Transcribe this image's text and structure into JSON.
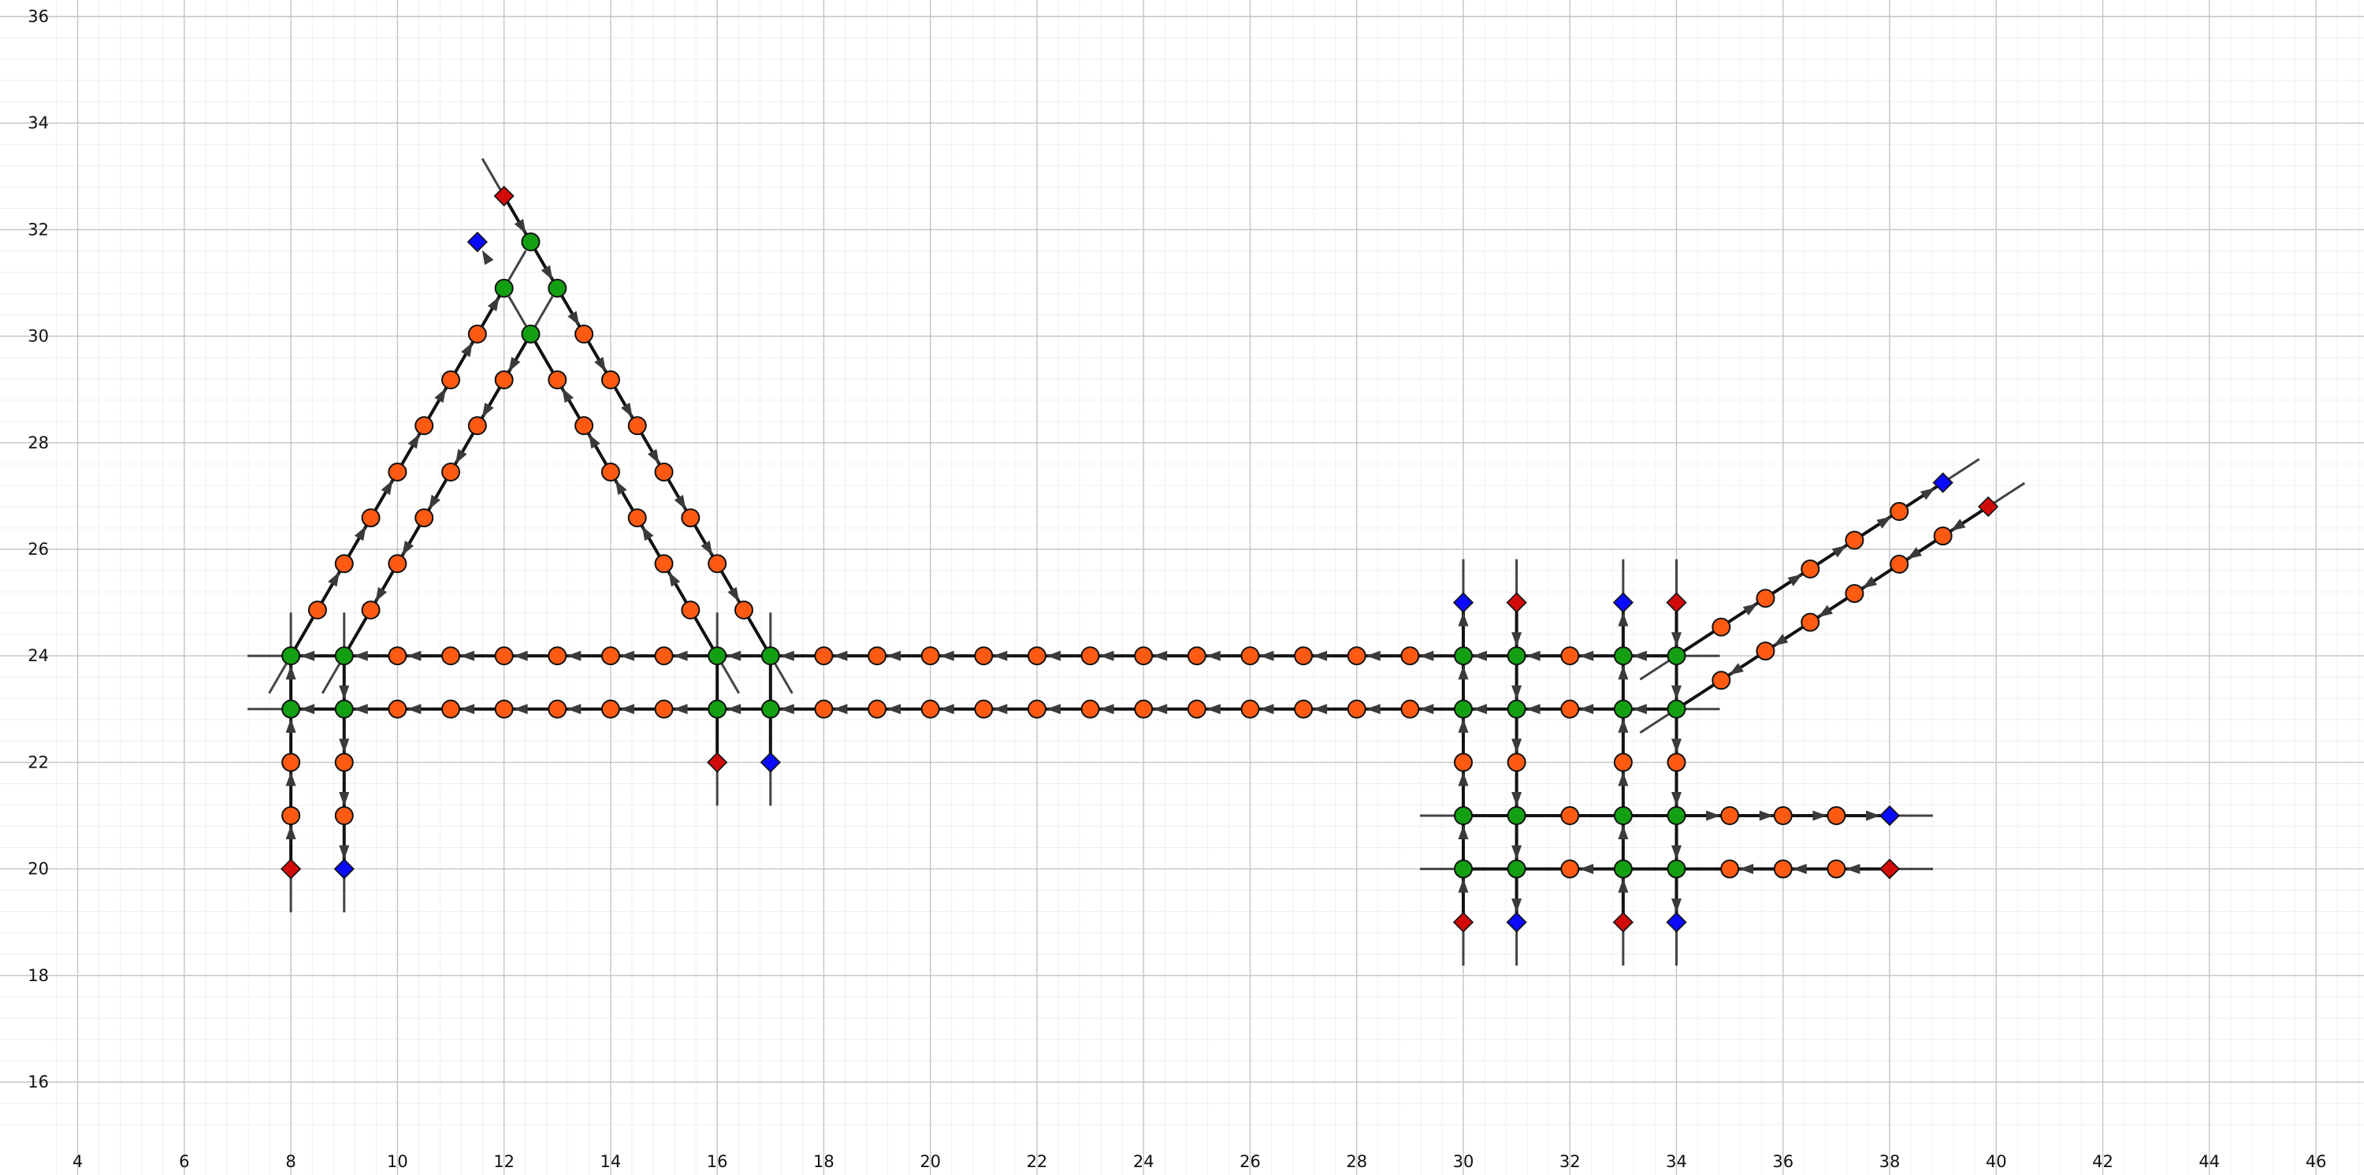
{
  "chart_data": {
    "type": "network",
    "title": "",
    "xlabel": "",
    "ylabel": "",
    "xlim": [
      3.5,
      47
    ],
    "ylim": [
      15,
      36.2
    ],
    "grid": true,
    "x_ticks": [
      "4",
      "6",
      "8",
      "10",
      "12",
      "14",
      "16",
      "18",
      "20",
      "22",
      "24",
      "26",
      "28",
      "30",
      "32",
      "34",
      "36",
      "38",
      "40",
      "42",
      "44",
      "46"
    ],
    "y_ticks": [
      "16",
      "18",
      "20",
      "22",
      "24",
      "26",
      "28",
      "30",
      "32",
      "34",
      "36"
    ],
    "colors": {
      "lane_node": "#ff5a12",
      "junction_node": "#12a012",
      "origin_node": "#d10a0a",
      "destination_node": "#0a0aff",
      "road": "#111111",
      "arrow": "#3a3a3a"
    },
    "roads": [
      {
        "name": "west-left-vertical",
        "points": [
          [
            8,
            20
          ],
          [
            8,
            24
          ]
        ],
        "direction": "forward",
        "nodes": [
          [
            8,
            20,
            "origin"
          ],
          [
            8,
            21,
            "lane"
          ],
          [
            8,
            22,
            "lane"
          ],
          [
            8,
            23,
            "junction"
          ],
          [
            8,
            24,
            "junction"
          ]
        ]
      },
      {
        "name": "west-right-vertical",
        "points": [
          [
            9,
            24
          ],
          [
            9,
            20
          ]
        ],
        "direction": "forward",
        "nodes": [
          [
            9,
            24,
            "junction"
          ],
          [
            9,
            23,
            "junction"
          ],
          [
            9,
            22,
            "lane"
          ],
          [
            9,
            21,
            "lane"
          ],
          [
            9,
            20,
            "destination"
          ]
        ]
      },
      {
        "name": "upper-horizontal",
        "points": [
          [
            8,
            24
          ],
          [
            34,
            24
          ]
        ],
        "direction": "backward",
        "nodes": [
          [
            8,
            24,
            "junction"
          ],
          [
            9,
            24,
            "junction"
          ],
          [
            10,
            24,
            "lane"
          ],
          [
            11,
            24,
            "lane"
          ],
          [
            12,
            24,
            "lane"
          ],
          [
            13,
            24,
            "lane"
          ],
          [
            14,
            24,
            "lane"
          ],
          [
            15,
            24,
            "lane"
          ],
          [
            16,
            24,
            "junction"
          ],
          [
            17,
            24,
            "junction"
          ],
          [
            18,
            24,
            "lane"
          ],
          [
            19,
            24,
            "lane"
          ],
          [
            20,
            24,
            "lane"
          ],
          [
            21,
            24,
            "lane"
          ],
          [
            22,
            24,
            "lane"
          ],
          [
            23,
            24,
            "lane"
          ],
          [
            24,
            24,
            "lane"
          ],
          [
            25,
            24,
            "lane"
          ],
          [
            26,
            24,
            "lane"
          ],
          [
            27,
            24,
            "lane"
          ],
          [
            28,
            24,
            "lane"
          ],
          [
            29,
            24,
            "lane"
          ],
          [
            30,
            24,
            "junction"
          ],
          [
            31,
            24,
            "junction"
          ],
          [
            32,
            24,
            "lane"
          ],
          [
            33,
            24,
            "junction"
          ],
          [
            34,
            24,
            "junction"
          ]
        ]
      },
      {
        "name": "lower-horizontal",
        "points": [
          [
            8,
            23
          ],
          [
            34,
            23
          ]
        ],
        "direction": "backward",
        "nodes": [
          [
            8,
            23,
            "junction"
          ],
          [
            9,
            23,
            "junction"
          ],
          [
            10,
            23,
            "lane"
          ],
          [
            11,
            23,
            "lane"
          ],
          [
            12,
            23,
            "lane"
          ],
          [
            13,
            23,
            "lane"
          ],
          [
            14,
            23,
            "lane"
          ],
          [
            15,
            23,
            "lane"
          ],
          [
            16,
            23,
            "junction"
          ],
          [
            17,
            23,
            "junction"
          ],
          [
            18,
            23,
            "lane"
          ],
          [
            19,
            23,
            "lane"
          ],
          [
            20,
            23,
            "lane"
          ],
          [
            21,
            23,
            "lane"
          ],
          [
            22,
            23,
            "lane"
          ],
          [
            23,
            23,
            "lane"
          ],
          [
            24,
            23,
            "lane"
          ],
          [
            25,
            23,
            "lane"
          ],
          [
            26,
            23,
            "lane"
          ],
          [
            27,
            23,
            "lane"
          ],
          [
            28,
            23,
            "lane"
          ],
          [
            29,
            23,
            "lane"
          ],
          [
            30,
            23,
            "junction"
          ],
          [
            31,
            23,
            "junction"
          ],
          [
            32,
            23,
            "lane"
          ],
          [
            33,
            23,
            "junction"
          ],
          [
            34,
            23,
            "junction"
          ]
        ]
      },
      {
        "name": "a-frame-left-outer",
        "points": [
          [
            8,
            24
          ],
          [
            12,
            30.9
          ]
        ],
        "direction": "forward",
        "nodes": [
          [
            8.5,
            24.86,
            "lane"
          ],
          [
            9,
            25.73,
            "lane"
          ],
          [
            9.5,
            26.59,
            "lane"
          ],
          [
            10,
            27.45,
            "lane"
          ],
          [
            10.5,
            28.32,
            "lane"
          ],
          [
            11,
            29.18,
            "lane"
          ],
          [
            11.5,
            30.04,
            "lane"
          ],
          [
            12,
            30.9,
            "junction"
          ],
          [
            11.5,
            31.77,
            "destination"
          ]
        ]
      },
      {
        "name": "a-frame-left-inner",
        "points": [
          [
            12.5,
            30.04
          ],
          [
            9,
            24
          ]
        ],
        "direction": "forward",
        "nodes": [
          [
            12.5,
            30.04,
            "junction"
          ],
          [
            12,
            29.18,
            "lane"
          ],
          [
            11.5,
            28.32,
            "lane"
          ],
          [
            11,
            27.45,
            "lane"
          ],
          [
            10.5,
            26.59,
            "lane"
          ],
          [
            10,
            25.73,
            "lane"
          ],
          [
            9.5,
            24.86,
            "lane"
          ]
        ]
      },
      {
        "name": "a-frame-right-outer",
        "points": [
          [
            12,
            32.63
          ],
          [
            17,
            24
          ]
        ],
        "direction": "forward",
        "nodes": [
          [
            12,
            32.63,
            "origin"
          ],
          [
            12.5,
            31.77,
            "junction"
          ],
          [
            13,
            30.9,
            "junction"
          ],
          [
            13.5,
            30.04,
            "lane"
          ],
          [
            14,
            29.18,
            "lane"
          ],
          [
            14.5,
            28.32,
            "lane"
          ],
          [
            15,
            27.45,
            "lane"
          ],
          [
            15.5,
            26.59,
            "lane"
          ],
          [
            16,
            25.73,
            "lane"
          ],
          [
            16.5,
            24.86,
            "lane"
          ]
        ]
      },
      {
        "name": "a-frame-right-inner",
        "points": [
          [
            16,
            24
          ],
          [
            12.5,
            30.04
          ]
        ],
        "direction": "forward",
        "nodes": [
          [
            15.5,
            24.86,
            "lane"
          ],
          [
            15,
            25.73,
            "lane"
          ],
          [
            14.5,
            26.59,
            "lane"
          ],
          [
            14,
            27.45,
            "lane"
          ],
          [
            13.5,
            28.32,
            "lane"
          ],
          [
            13,
            29.18,
            "lane"
          ]
        ]
      },
      {
        "name": "middle-stub-origin",
        "points": [
          [
            16,
            22
          ],
          [
            16,
            24
          ]
        ],
        "direction": "forward",
        "nodes": [
          [
            16,
            22,
            "origin"
          ]
        ]
      },
      {
        "name": "middle-stub-destination",
        "points": [
          [
            17,
            24
          ],
          [
            17,
            22
          ]
        ],
        "direction": "forward",
        "nodes": [
          [
            17,
            22,
            "destination"
          ]
        ]
      },
      {
        "name": "grid-col-30",
        "points": [
          [
            30,
            19
          ],
          [
            30,
            25
          ]
        ],
        "direction": "forward",
        "nodes": [
          [
            30,
            19,
            "origin"
          ],
          [
            30,
            20,
            "junction"
          ],
          [
            30,
            21,
            "junction"
          ],
          [
            30,
            22,
            "lane"
          ],
          [
            30,
            23,
            "junction"
          ],
          [
            30,
            24,
            "junction"
          ],
          [
            30,
            25,
            "destination"
          ]
        ]
      },
      {
        "name": "grid-col-31",
        "points": [
          [
            31,
            25
          ],
          [
            31,
            19
          ]
        ],
        "direction": "forward",
        "nodes": [
          [
            31,
            25,
            "origin"
          ],
          [
            31,
            24,
            "junction"
          ],
          [
            31,
            23,
            "junction"
          ],
          [
            31,
            22,
            "lane"
          ],
          [
            31,
            21,
            "junction"
          ],
          [
            31,
            20,
            "junction"
          ],
          [
            31,
            19,
            "destination"
          ]
        ]
      },
      {
        "name": "grid-col-33",
        "points": [
          [
            33,
            19
          ],
          [
            33,
            25
          ]
        ],
        "direction": "forward",
        "nodes": [
          [
            33,
            19,
            "origin"
          ],
          [
            33,
            20,
            "junction"
          ],
          [
            33,
            21,
            "junction"
          ],
          [
            33,
            22,
            "lane"
          ],
          [
            33,
            23,
            "junction"
          ],
          [
            33,
            24,
            "junction"
          ],
          [
            33,
            25,
            "destination"
          ]
        ]
      },
      {
        "name": "grid-col-34",
        "points": [
          [
            34,
            25
          ],
          [
            34,
            19
          ]
        ],
        "direction": "forward",
        "nodes": [
          [
            34,
            25,
            "origin"
          ],
          [
            34,
            24,
            "junction"
          ],
          [
            34,
            23,
            "junction"
          ],
          [
            34,
            22,
            "lane"
          ],
          [
            34,
            21,
            "junction"
          ],
          [
            34,
            20,
            "junction"
          ],
          [
            34,
            19,
            "destination"
          ]
        ]
      },
      {
        "name": "grid-row-21",
        "points": [
          [
            30,
            21
          ],
          [
            38,
            21
          ]
        ],
        "direction": "forward",
        "nodes": [
          [
            32,
            21,
            "lane"
          ],
          [
            35,
            21,
            "lane"
          ],
          [
            36,
            21,
            "lane"
          ],
          [
            37,
            21,
            "lane"
          ],
          [
            38,
            21,
            "destination"
          ]
        ]
      },
      {
        "name": "grid-row-20",
        "points": [
          [
            38,
            20
          ],
          [
            30,
            20
          ]
        ],
        "direction": "forward",
        "nodes": [
          [
            38,
            20,
            "origin"
          ],
          [
            37,
            20,
            "lane"
          ],
          [
            36,
            20,
            "lane"
          ],
          [
            35,
            20,
            "lane"
          ],
          [
            32,
            20,
            "lane"
          ]
        ]
      },
      {
        "name": "diagonal-outbound",
        "points": [
          [
            34,
            24
          ],
          [
            39,
            27.25
          ]
        ],
        "direction": "forward",
        "nodes": [
          [
            34.84,
            24.54,
            "lane"
          ],
          [
            35.67,
            25.08,
            "lane"
          ],
          [
            36.51,
            25.63,
            "lane"
          ],
          [
            37.34,
            26.17,
            "lane"
          ],
          [
            38.18,
            26.71,
            "lane"
          ],
          [
            39,
            27.25,
            "destination"
          ]
        ]
      },
      {
        "name": "diagonal-inbound",
        "points": [
          [
            39.85,
            26.8
          ],
          [
            34,
            23
          ]
        ],
        "direction": "forward",
        "nodes": [
          [
            39.85,
            26.8,
            "origin"
          ],
          [
            39,
            26.25,
            "lane"
          ],
          [
            38.18,
            25.72,
            "lane"
          ],
          [
            37.34,
            25.17,
            "lane"
          ],
          [
            36.51,
            24.63,
            "lane"
          ],
          [
            35.67,
            24.09,
            "lane"
          ],
          [
            34.84,
            23.54,
            "lane"
          ]
        ]
      }
    ]
  }
}
